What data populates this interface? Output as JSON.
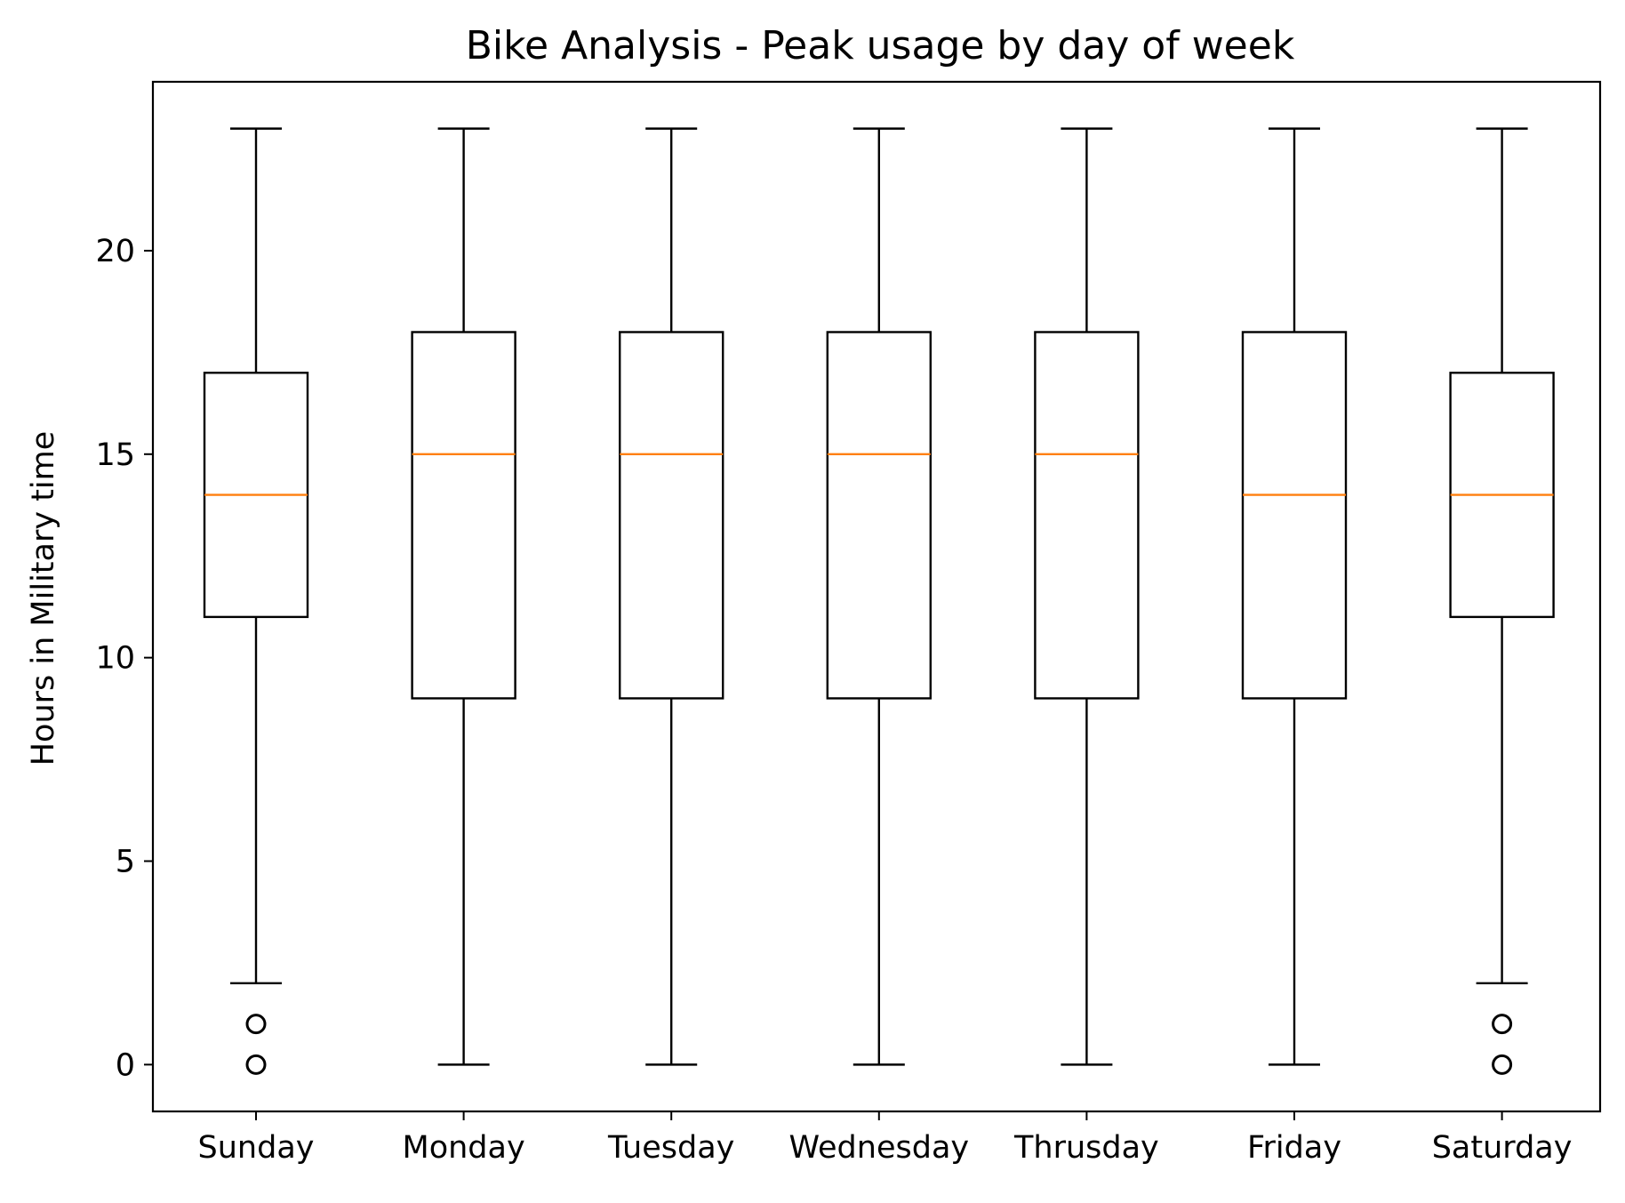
{
  "chart_data": {
    "type": "box",
    "title": "Bike Analysis - Peak usage by day of week",
    "xlabel": "",
    "ylabel": "Hours in Military time",
    "categories": [
      "Sunday",
      "Monday",
      "Tuesday",
      "Wednesday",
      "Thrusday",
      "Friday",
      "Saturday"
    ],
    "ylim": [
      -1.15,
      24.15
    ],
    "yticks": [
      0,
      5,
      10,
      15,
      20
    ],
    "grid": false,
    "boxes": [
      {
        "category": "Sunday",
        "whisker_low": 2,
        "q1": 11,
        "median": 14,
        "q3": 17,
        "whisker_high": 23,
        "outliers": [
          0,
          1
        ]
      },
      {
        "category": "Monday",
        "whisker_low": 0,
        "q1": 9,
        "median": 15,
        "q3": 18,
        "whisker_high": 23,
        "outliers": []
      },
      {
        "category": "Tuesday",
        "whisker_low": 0,
        "q1": 9,
        "median": 15,
        "q3": 18,
        "whisker_high": 23,
        "outliers": []
      },
      {
        "category": "Wednesday",
        "whisker_low": 0,
        "q1": 9,
        "median": 15,
        "q3": 18,
        "whisker_high": 23,
        "outliers": []
      },
      {
        "category": "Thrusday",
        "whisker_low": 0,
        "q1": 9,
        "median": 15,
        "q3": 18,
        "whisker_high": 23,
        "outliers": []
      },
      {
        "category": "Friday",
        "whisker_low": 0,
        "q1": 9,
        "median": 14,
        "q3": 18,
        "whisker_high": 23,
        "outliers": []
      },
      {
        "category": "Saturday",
        "whisker_low": 2,
        "q1": 11,
        "median": 14,
        "q3": 17,
        "whisker_high": 23,
        "outliers": [
          0,
          1
        ]
      }
    ],
    "colors": {
      "box": "#000000",
      "median": "#ff7f0e",
      "outlier": "#000000"
    }
  }
}
